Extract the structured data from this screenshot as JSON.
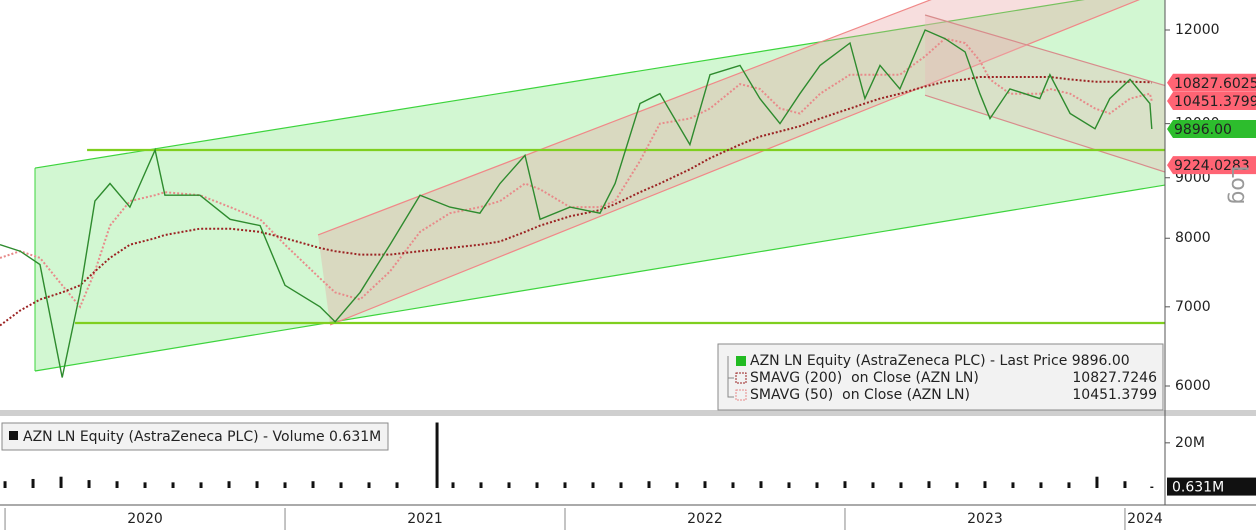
{
  "chart_data": [
    {
      "type": "line",
      "log_scale": true,
      "x": [
        2019.982,
        2020.054,
        2020.125,
        2020.204,
        2020.268,
        2020.321,
        2020.375,
        2020.446,
        2020.536,
        2020.571,
        2020.696,
        2020.804,
        2020.911,
        2021.0,
        2021.125,
        2021.179,
        2021.268,
        2021.375,
        2021.482,
        2021.589,
        2021.696,
        2021.768,
        2021.857,
        2021.911,
        2022.018,
        2022.125,
        2022.179,
        2022.268,
        2022.339,
        2022.446,
        2022.518,
        2022.625,
        2022.696,
        2022.768,
        2022.839,
        2022.911,
        2023.018,
        2023.071,
        2023.125,
        2023.196,
        2023.286,
        2023.357,
        2023.429,
        2023.482,
        2023.518,
        2023.589,
        2023.696,
        2023.732,
        2023.804,
        2023.893,
        2023.946,
        2024.018,
        2024.089,
        2024.096
      ],
      "xlim": [
        2019.982,
        2024.143
      ],
      "xticks": [
        {
          "value": 2020,
          "label": "2020"
        },
        {
          "value": 2021,
          "label": "2021"
        },
        {
          "value": 2022,
          "label": "2022"
        },
        {
          "value": 2023,
          "label": "2023"
        },
        {
          "value": 2024,
          "label": "2024"
        }
      ],
      "ylim": [
        5726,
        12722
      ],
      "yticks": [
        6000,
        7000,
        8000,
        9000,
        10000,
        12000
      ],
      "axis_note": "Log",
      "series": [
        {
          "name": "AZN LN Equity (AstraZeneca PLC) - Last Price 9896.00",
          "color": "#2e8b2e",
          "style": "solid",
          "values": [
            7900,
            7800,
            7600,
            6100,
            7200,
            8600,
            8900,
            8500,
            9500,
            8700,
            8700,
            8300,
            8200,
            7300,
            7000,
            6800,
            7200,
            7900,
            8700,
            8500,
            8400,
            8900,
            9400,
            8300,
            8500,
            8400,
            8900,
            10400,
            10600,
            9600,
            11000,
            11200,
            10500,
            10000,
            10600,
            11200,
            11700,
            10500,
            11200,
            10700,
            12000,
            11800,
            11500,
            10600,
            10100,
            10700,
            10500,
            11000,
            10200,
            9900,
            10500,
            10900,
            10400,
            9896
          ]
        },
        {
          "name": "SMAVG (200)  on Close (AZN LN)",
          "color": "#9b2222",
          "style": "dotted",
          "values": [
            6750,
            6950,
            7100,
            7200,
            7300,
            7500,
            7700,
            7900,
            8000,
            8050,
            8150,
            8150,
            8100,
            8000,
            7850,
            7800,
            7750,
            7750,
            7800,
            7850,
            7900,
            7950,
            8100,
            8200,
            8350,
            8450,
            8550,
            8750,
            8900,
            9150,
            9350,
            9600,
            9750,
            9850,
            9950,
            10100,
            10300,
            10400,
            10500,
            10600,
            10750,
            10850,
            10900,
            10950,
            10950,
            10950,
            10950,
            10950,
            10900,
            10850,
            10850,
            10850,
            10840,
            10827.7246
          ]
        },
        {
          "name": "SMAVG (50)  on Close (AZN LN)",
          "color": "#e88a8a",
          "style": "dotted",
          "values": [
            7700,
            7800,
            7700,
            7300,
            7000,
            7500,
            8200,
            8600,
            8700,
            8750,
            8700,
            8500,
            8300,
            7900,
            7400,
            7200,
            7100,
            7500,
            8100,
            8400,
            8500,
            8600,
            8900,
            8800,
            8500,
            8500,
            8600,
            9300,
            10000,
            10100,
            10300,
            10800,
            10700,
            10300,
            10200,
            10600,
            11000,
            11000,
            11000,
            11000,
            11400,
            11800,
            11700,
            11300,
            10900,
            10600,
            10600,
            10700,
            10600,
            10300,
            10200,
            10500,
            10600,
            10451.3799
          ]
        }
      ],
      "price_tags": [
        {
          "value": 10827.6025,
          "color": "#ff6474"
        },
        {
          "value": 10451.3799,
          "color": "#ff6474"
        },
        {
          "value": 9896,
          "label": "9896.00",
          "color": "#2dbd2d"
        },
        {
          "value": 9224.0283,
          "color": "#ff6474"
        }
      ],
      "channels": [
        {
          "fill": "#d2f7d2",
          "stroke": "#3dd43d",
          "upper": [
            [
              2020.107,
              9171
            ],
            [
              2024.143,
              13060
            ]
          ],
          "lower": [
            [
              2020.107,
              6178
            ],
            [
              2024.143,
              8873
            ]
          ]
        },
        {
          "fill": "#e8a0a0",
          "stroke": "#f08888",
          "upper": [
            [
              2021.118,
              8051
            ],
            [
              2024.143,
              15164
            ]
          ],
          "lower": [
            [
              2021.161,
              6757
            ],
            [
              2024.143,
              12990
            ]
          ]
        },
        {
          "fill": "#e8b8b8",
          "stroke": "#d88c8c",
          "upper": [
            [
              2023.286,
              12356
            ],
            [
              2024.143,
              10770
            ]
          ],
          "lower": [
            [
              2023.286,
              10569
            ],
            [
              2024.143,
              9101
            ]
          ]
        }
      ],
      "levels": [
        {
          "value": 9500,
          "from": 2020.293,
          "color": "#7fcf1f"
        },
        {
          "value": 6783,
          "from": 2020.25,
          "color": "#7fcf1f"
        }
      ]
    },
    {
      "type": "bar",
      "name": "AZN LN Equity (AstraZeneca PLC) - Volume 0.631M",
      "color": "#111111",
      "x": [
        2020.0,
        2020.1,
        2020.2,
        2020.3,
        2020.4,
        2020.5,
        2020.6,
        2020.7,
        2020.8,
        2020.9,
        2021.0,
        2021.1,
        2021.2,
        2021.3,
        2021.4,
        2021.543,
        2021.6,
        2021.7,
        2021.8,
        2021.9,
        2022.0,
        2022.1,
        2022.2,
        2022.3,
        2022.4,
        2022.5,
        2022.6,
        2022.7,
        2022.8,
        2022.9,
        2023.0,
        2023.1,
        2023.2,
        2023.3,
        2023.4,
        2023.5,
        2023.6,
        2023.7,
        2023.8,
        2023.9,
        2024.0,
        2024.096
      ],
      "values": [
        3,
        4,
        5,
        3.5,
        3,
        2.5,
        2.5,
        2.5,
        3,
        3,
        2.5,
        3,
        2.5,
        2.5,
        2.5,
        29,
        2.5,
        2.5,
        2.5,
        2.5,
        2.5,
        2.5,
        2.5,
        3,
        2.5,
        3,
        2.5,
        3,
        2.5,
        2.5,
        3,
        2.5,
        2.5,
        3,
        2.5,
        3,
        2.5,
        2.5,
        2.5,
        5,
        3,
        0.631
      ],
      "ylim": [
        0,
        31
      ],
      "yticks": [
        {
          "value": 20,
          "label": "20M"
        }
      ],
      "tag": {
        "value": 0.631,
        "label": "0.631M"
      }
    }
  ]
}
